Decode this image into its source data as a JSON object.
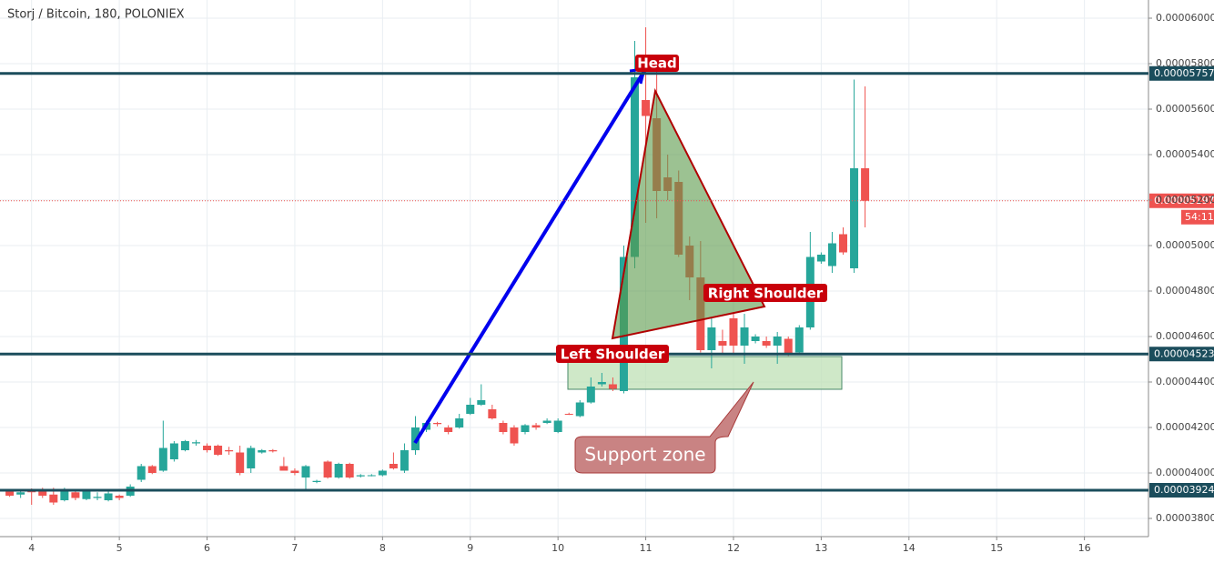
{
  "chart_data": {
    "type": "candlestick",
    "title": "Storj / Bitcoin, 180, POLONIEX",
    "up_color": "#26a69a",
    "down_color": "#ef5350",
    "grid": true,
    "xlim": [
      3.64,
      16.73
    ],
    "ylim": [
      3.72e-05,
      6.08e-05
    ],
    "xticks": [
      4,
      5,
      6,
      7,
      8,
      9,
      10,
      11,
      12,
      13,
      14,
      15,
      16
    ],
    "yticks": [
      {
        "value": 3.8e-05,
        "label": "0.00003800"
      },
      {
        "value": 4e-05,
        "label": "0.00004000"
      },
      {
        "value": 4.2e-05,
        "label": "0.00004200"
      },
      {
        "value": 4.4e-05,
        "label": "0.00004400"
      },
      {
        "value": 4.6e-05,
        "label": "0.00004600"
      },
      {
        "value": 4.8e-05,
        "label": "0.00004800"
      },
      {
        "value": 5e-05,
        "label": "0.00005000"
      },
      {
        "value": 5.2e-05,
        "label": "0.00005200"
      },
      {
        "value": 5.4e-05,
        "label": "0.00005400"
      },
      {
        "value": 5.6e-05,
        "label": "0.00005600"
      },
      {
        "value": 5.8e-05,
        "label": "0.00005800"
      },
      {
        "value": 6e-05,
        "label": "0.00006000"
      }
    ],
    "levels": [
      {
        "value": 5.757e-05,
        "label": "0.00005757"
      },
      {
        "value": 4.523e-05,
        "label": "0.00004523"
      },
      {
        "value": 3.924e-05,
        "label": "0.00003924"
      }
    ],
    "last_price": {
      "value": 5.197e-05,
      "label": "0.00005197"
    },
    "countdown": "54:11",
    "annotations": {
      "head": "Head",
      "left_shoulder": "Left Shoulder",
      "right_shoulder": "Right Shoulder",
      "support": "Support zone"
    },
    "x": [
      3.75,
      3.875,
      4,
      4.125,
      4.25,
      4.375,
      4.5,
      4.625,
      4.75,
      4.875,
      5,
      5.125,
      5.25,
      5.375,
      5.5,
      5.625,
      5.75,
      5.875,
      6,
      6.125,
      6.25,
      6.375,
      6.5,
      6.625,
      6.75,
      6.875,
      7,
      7.125,
      7.25,
      7.375,
      7.5,
      7.625,
      7.75,
      7.875,
      8,
      8.125,
      8.25,
      8.375,
      8.5,
      8.625,
      8.75,
      8.875,
      9,
      9.125,
      9.25,
      9.375,
      9.5,
      9.625,
      9.75,
      9.875,
      10,
      10.125,
      10.25,
      10.375,
      10.5,
      10.625,
      10.75,
      10.875,
      11,
      11.125,
      11.25,
      11.375,
      11.5,
      11.625,
      11.75,
      11.875,
      12,
      12.125,
      12.25,
      12.375,
      12.5,
      12.625,
      12.75,
      12.875,
      13,
      13.125,
      13.25,
      13.375,
      13.5
    ],
    "open": [
      3.924e-05,
      3.905e-05,
      3.92e-05,
      3.92e-05,
      3.905e-05,
      3.88e-05,
      3.915e-05,
      3.885e-05,
      3.89e-05,
      3.88e-05,
      3.9e-05,
      3.9e-05,
      3.97e-05,
      4.03e-05,
      4.01e-05,
      4.06e-05,
      4.1e-05,
      4.13e-05,
      4.12e-05,
      4.12e-05,
      4.1e-05,
      4.09e-05,
      4.02e-05,
      4.09e-05,
      4.1e-05,
      4.03e-05,
      4.01e-05,
      3.98e-05,
      3.96e-05,
      4.05e-05,
      3.98e-05,
      4.04e-05,
      3.985e-05,
      3.99e-05,
      3.99e-05,
      4.04e-05,
      4.01e-05,
      4.1e-05,
      4.19e-05,
      4.22e-05,
      4.2e-05,
      4.2e-05,
      4.26e-05,
      4.3e-05,
      4.28e-05,
      4.22e-05,
      4.2e-05,
      4.18e-05,
      4.21e-05,
      4.22e-05,
      4.18e-05,
      4.26e-05,
      4.25e-05,
      4.31e-05,
      4.39e-05,
      4.39e-05,
      4.36e-05,
      4.95e-05,
      5.64e-05,
      5.56e-05,
      5.3e-05,
      5.28e-05,
      5e-05,
      4.86e-05,
      4.54e-05,
      4.58e-05,
      4.68e-05,
      4.56e-05,
      4.58e-05,
      4.58e-05,
      4.56e-05,
      4.59e-05,
      4.53e-05,
      4.64e-05,
      4.93e-05,
      4.91e-05,
      5.05e-05,
      4.9e-05,
      5.34e-05
    ],
    "high": [
      3.93e-05,
      3.925e-05,
      3.932e-05,
      3.935e-05,
      3.935e-05,
      3.935e-05,
      3.93e-05,
      3.93e-05,
      3.915e-05,
      3.925e-05,
      3.905e-05,
      3.95e-05,
      4.04e-05,
      4.035e-05,
      4.23e-05,
      4.14e-05,
      4.145e-05,
      4.145e-05,
      4.13e-05,
      4.125e-05,
      4.115e-05,
      4.12e-05,
      4.12e-05,
      4.105e-05,
      4.105e-05,
      4.07e-05,
      4.02e-05,
      4.035e-05,
      3.97e-05,
      4.055e-05,
      4.045e-05,
      4.045e-05,
      3.995e-05,
      3.995e-05,
      4.015e-05,
      4.09e-05,
      4.13e-05,
      4.25e-05,
      4.23e-05,
      4.225e-05,
      4.21e-05,
      4.26e-05,
      4.33e-05,
      4.39e-05,
      4.3e-05,
      4.23e-05,
      4.21e-05,
      4.215e-05,
      4.22e-05,
      4.24e-05,
      4.24e-05,
      4.265e-05,
      4.32e-05,
      4.42e-05,
      4.44e-05,
      4.42e-05,
      5e-05,
      5.9e-05,
      5.96e-05,
      5.78e-05,
      5.4e-05,
      5.33e-05,
      5.04e-05,
      5.02e-05,
      4.68e-05,
      4.63e-05,
      4.7e-05,
      4.7e-05,
      4.61e-05,
      4.6e-05,
      4.62e-05,
      4.6e-05,
      4.65e-05,
      5.06e-05,
      4.97e-05,
      5.06e-05,
      5.08e-05,
      5.73e-05,
      5.7e-05
    ],
    "low": [
      3.895e-05,
      3.89e-05,
      3.86e-05,
      3.89e-05,
      3.86e-05,
      3.875e-05,
      3.88e-05,
      3.88e-05,
      3.88e-05,
      3.875e-05,
      3.88e-05,
      3.895e-05,
      3.96e-05,
      3.995e-05,
      4.005e-05,
      4.05e-05,
      4.095e-05,
      4.12e-05,
      4.09e-05,
      4.075e-05,
      4.08e-05,
      3.99e-05,
      4e-05,
      4.085e-05,
      4.09e-05,
      4.01e-05,
      3.99e-05,
      3.93e-05,
      3.955e-05,
      3.975e-05,
      3.975e-05,
      3.975e-05,
      3.98e-05,
      3.985e-05,
      3.985e-05,
      4.015e-05,
      4e-05,
      4.08e-05,
      4.18e-05,
      4.205e-05,
      4.17e-05,
      4.195e-05,
      4.255e-05,
      4.295e-05,
      4.235e-05,
      4.17e-05,
      4.12e-05,
      4.17e-05,
      4.19e-05,
      4.215e-05,
      4.175e-05,
      4.255e-05,
      4.245e-05,
      4.305e-05,
      4.38e-05,
      4.36e-05,
      4.35e-05,
      4.9e-05,
      5.1e-05,
      5.12e-05,
      5.2e-05,
      4.95e-05,
      4.76e-05,
      4.53e-05,
      4.46e-05,
      4.52e-05,
      4.52e-05,
      4.48e-05,
      4.57e-05,
      4.55e-05,
      4.48e-05,
      4.515e-05,
      4.525e-05,
      4.63e-05,
      4.92e-05,
      4.88e-05,
      4.96e-05,
      4.88e-05,
      5.08e-05
    ],
    "close": [
      3.9e-05,
      3.915e-05,
      3.915e-05,
      3.9e-05,
      3.87e-05,
      3.92e-05,
      3.89e-05,
      3.92e-05,
      3.895e-05,
      3.91e-05,
      3.89e-05,
      3.94e-05,
      4.03e-05,
      4e-05,
      4.11e-05,
      4.13e-05,
      4.14e-05,
      4.135e-05,
      4.1e-05,
      4.08e-05,
      4.095e-05,
      4e-05,
      4.11e-05,
      4.1e-05,
      4.095e-05,
      4.01e-05,
      4e-05,
      4.03e-05,
      3.965e-05,
      3.98e-05,
      4.04e-05,
      3.98e-05,
      3.99e-05,
      3.99e-05,
      4.01e-05,
      4.02e-05,
      4.1e-05,
      4.2e-05,
      4.22e-05,
      4.215e-05,
      4.18e-05,
      4.24e-05,
      4.3e-05,
      4.32e-05,
      4.24e-05,
      4.18e-05,
      4.13e-05,
      4.21e-05,
      4.2e-05,
      4.23e-05,
      4.23e-05,
      4.258e-05,
      4.31e-05,
      4.38e-05,
      4.4e-05,
      4.37e-05,
      4.95e-05,
      5.74e-05,
      5.57e-05,
      5.24e-05,
      5.24e-05,
      4.96e-05,
      4.86e-05,
      4.54e-05,
      4.64e-05,
      4.56e-05,
      4.56e-05,
      4.64e-05,
      4.6e-05,
      4.56e-05,
      4.6e-05,
      4.52e-05,
      4.64e-05,
      4.95e-05,
      4.96e-05,
      5.01e-05,
      4.97e-05,
      5.34e-05,
      5.197e-05
    ]
  }
}
